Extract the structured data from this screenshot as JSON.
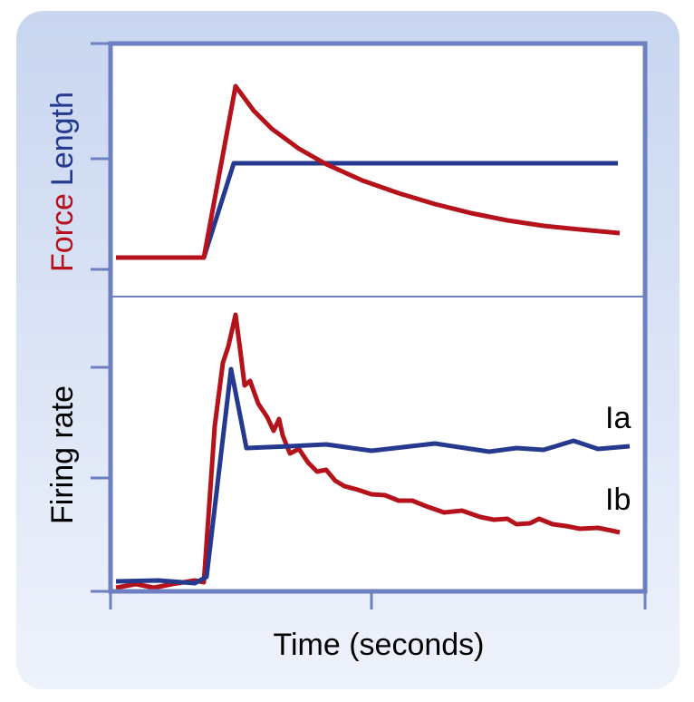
{
  "top_panel": {
    "y_label_force": "Force",
    "y_label_length": "Length"
  },
  "bottom_panel": {
    "y_label": "Firing rate",
    "label_ia": "Ia",
    "label_ib": "Ib"
  },
  "x_label": "Time (seconds)"
}
